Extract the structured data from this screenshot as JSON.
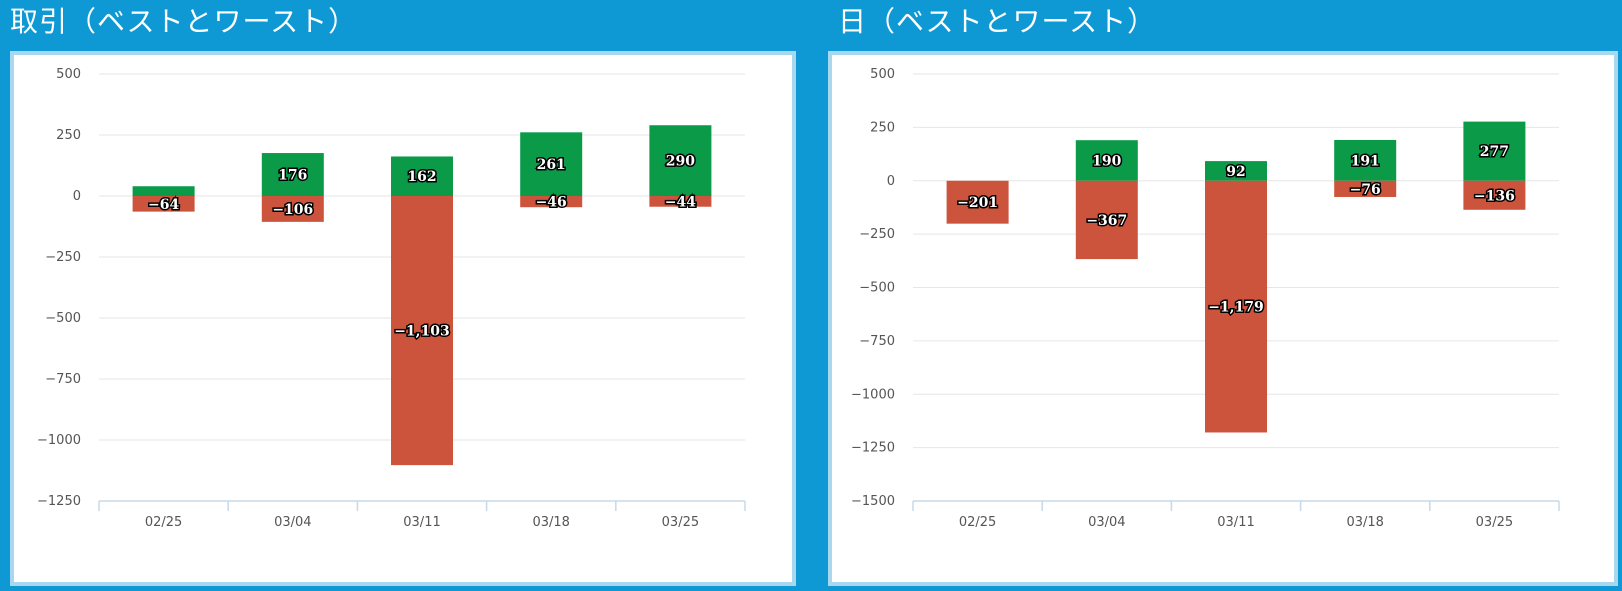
{
  "panels": {
    "left": {
      "title": "取引（ベストとワースト）"
    },
    "right": {
      "title": "日（ベストとワースト）"
    }
  },
  "colors": {
    "positive": "#0a9a48",
    "negative": "#cd543c",
    "grid": "#e6e6e6",
    "axis": "#c8d9e6"
  },
  "chart_data": [
    {
      "type": "bar",
      "title": "取引（ベストとワースト）",
      "categories": [
        "02/25",
        "03/04",
        "03/11",
        "03/18",
        "03/25"
      ],
      "yticks": [
        "500",
        "250",
        "0",
        "−250",
        "−500",
        "−750",
        "−1000",
        "−1250"
      ],
      "ytick_values": [
        500,
        250,
        0,
        -250,
        -500,
        -750,
        -1000,
        -1250
      ],
      "ylim": [
        -1250,
        500
      ],
      "series": [
        {
          "values": [
            40,
            176,
            162,
            261,
            290
          ],
          "labels": [
            "",
            "176",
            "162",
            "261",
            "290"
          ]
        },
        {
          "values": [
            -64,
            -106,
            -1103,
            -46,
            -44
          ],
          "labels": [
            "−64",
            "−106",
            "−1,103",
            "−46",
            "−44"
          ]
        }
      ]
    },
    {
      "type": "bar",
      "title": "日（ベストとワースト）",
      "categories": [
        "02/25",
        "03/04",
        "03/11",
        "03/18",
        "03/25"
      ],
      "yticks": [
        "500",
        "250",
        "0",
        "−250",
        "−500",
        "−750",
        "−1000",
        "−1250",
        "−1500"
      ],
      "ytick_values": [
        500,
        250,
        0,
        -250,
        -500,
        -750,
        -1000,
        -1250,
        -1500
      ],
      "ylim": [
        -1500,
        500
      ],
      "series": [
        {
          "values": [
            0,
            190,
            92,
            191,
            277
          ],
          "labels": [
            "",
            "190",
            "92",
            "191",
            "277"
          ]
        },
        {
          "values": [
            -201,
            -367,
            -1179,
            -76,
            -136
          ],
          "labels": [
            "−201",
            "−367",
            "−1,179",
            "−76",
            "−136"
          ]
        }
      ]
    }
  ]
}
